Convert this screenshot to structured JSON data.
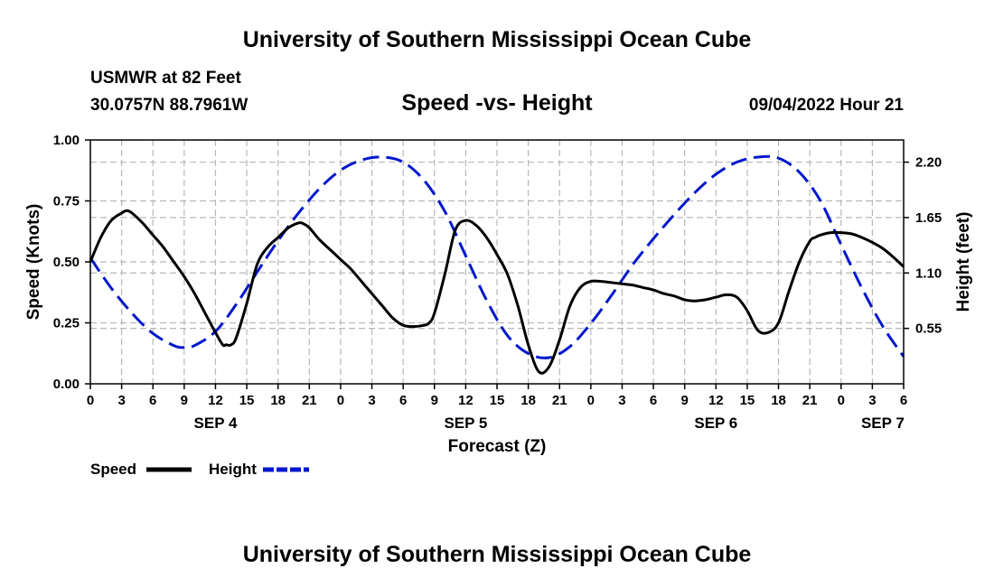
{
  "header": {
    "title": "University of Southern Mississippi Ocean Cube",
    "station": "USMWR at 82 Feet",
    "coords": "30.0757N  88.7961W",
    "chart_title": "Speed -vs- Height",
    "datetime": "09/04/2022 Hour 21"
  },
  "footer": {
    "title": "University of Southern Mississippi Ocean Cube"
  },
  "colors": {
    "speed": "#000000",
    "height": "#0018cc",
    "grid": "#b8b8b8"
  },
  "chart_data": {
    "type": "line",
    "title": "Speed -vs- Height",
    "xlabel": "Forecast (Z)",
    "ylabel": "Speed (Knots)",
    "y2label": "Height (feet)",
    "xlim": [
      0,
      78
    ],
    "ylim": [
      0,
      1.0
    ],
    "y2lim": [
      0,
      2.42
    ],
    "x_ticks": [
      0,
      3,
      6,
      9,
      12,
      15,
      18,
      21,
      24,
      27,
      30,
      33,
      36,
      39,
      42,
      45,
      48,
      51,
      54,
      57,
      60,
      63,
      66,
      69,
      72,
      75,
      78
    ],
    "x_tick_labels": [
      "0",
      "3",
      "6",
      "9",
      "12",
      "15",
      "18",
      "21",
      "0",
      "3",
      "6",
      "9",
      "12",
      "15",
      "18",
      "21",
      "0",
      "3",
      "6",
      "9",
      "12",
      "15",
      "18",
      "21",
      "0",
      "3",
      "6"
    ],
    "y_ticks": [
      0.0,
      0.25,
      0.5,
      0.75,
      1.0
    ],
    "y_tick_labels": [
      "0.00",
      "0.25",
      "0.50",
      "0.75",
      "1.00"
    ],
    "y2_ticks": [
      0.55,
      1.1,
      1.65,
      2.2
    ],
    "y2_tick_labels": [
      "0.55",
      "1.10",
      "1.65",
      "2.20"
    ],
    "day_labels": [
      {
        "x": 12,
        "label": "SEP 4"
      },
      {
        "x": 36,
        "label": "SEP 5"
      },
      {
        "x": 60,
        "label": "SEP 6"
      },
      {
        "x": 76,
        "label": "SEP 7"
      }
    ],
    "grid": true,
    "series": [
      {
        "name": "Speed",
        "axis": "left",
        "style": "solid",
        "x": [
          0,
          1,
          2,
          3,
          3.5,
          4,
          5,
          6,
          7,
          8,
          9,
          10,
          11,
          12,
          12.7,
          13,
          13.5,
          14,
          15,
          16,
          17,
          18,
          19,
          20,
          20.5,
          21,
          22,
          23,
          24,
          25,
          26,
          27,
          28,
          29,
          30,
          31,
          32,
          32.5,
          33,
          34,
          35,
          36,
          37,
          38,
          39,
          40,
          41,
          42,
          43,
          44,
          45,
          46,
          47,
          48,
          49,
          50,
          51,
          52,
          53,
          54,
          55,
          56,
          57,
          58,
          59,
          60,
          61,
          62,
          63,
          64,
          65,
          66,
          67,
          68,
          69,
          69.5,
          70,
          71,
          72,
          73,
          74,
          75,
          76,
          77,
          78
        ],
        "values": [
          0.5,
          0.6,
          0.67,
          0.7,
          0.71,
          0.7,
          0.66,
          0.61,
          0.56,
          0.5,
          0.44,
          0.37,
          0.29,
          0.21,
          0.16,
          0.16,
          0.16,
          0.19,
          0.33,
          0.49,
          0.56,
          0.6,
          0.64,
          0.66,
          0.655,
          0.64,
          0.59,
          0.55,
          0.51,
          0.47,
          0.42,
          0.37,
          0.32,
          0.27,
          0.24,
          0.235,
          0.24,
          0.25,
          0.29,
          0.45,
          0.63,
          0.67,
          0.65,
          0.6,
          0.53,
          0.45,
          0.32,
          0.16,
          0.05,
          0.07,
          0.18,
          0.32,
          0.395,
          0.42,
          0.42,
          0.415,
          0.41,
          0.405,
          0.395,
          0.385,
          0.37,
          0.36,
          0.345,
          0.34,
          0.345,
          0.355,
          0.365,
          0.355,
          0.3,
          0.22,
          0.21,
          0.25,
          0.38,
          0.5,
          0.585,
          0.6,
          0.61,
          0.62,
          0.62,
          0.615,
          0.6,
          0.58,
          0.555,
          0.52,
          0.48
        ]
      },
      {
        "name": "Height",
        "axis": "right",
        "style": "dashed",
        "x": [
          0,
          2,
          4,
          6,
          8,
          9,
          10,
          12,
          14,
          16,
          18,
          20,
          22,
          24,
          26,
          28,
          30,
          32,
          34,
          36,
          38,
          40,
          42,
          44,
          46,
          48,
          50,
          52,
          54,
          56,
          58,
          60,
          62,
          64,
          66,
          68,
          70,
          72,
          74,
          76,
          78
        ],
        "values": [
          1.25,
          0.95,
          0.7,
          0.5,
          0.38,
          0.36,
          0.38,
          0.52,
          0.79,
          1.11,
          1.42,
          1.7,
          1.94,
          2.12,
          2.22,
          2.25,
          2.2,
          2.02,
          1.71,
          1.27,
          0.83,
          0.48,
          0.3,
          0.26,
          0.37,
          0.6,
          0.88,
          1.18,
          1.44,
          1.68,
          1.9,
          2.08,
          2.2,
          2.25,
          2.24,
          2.1,
          1.82,
          1.38,
          0.95,
          0.57,
          0.27
        ]
      }
    ],
    "legend": {
      "position": "bottom-left",
      "entries": [
        "Speed",
        "Height"
      ]
    }
  }
}
